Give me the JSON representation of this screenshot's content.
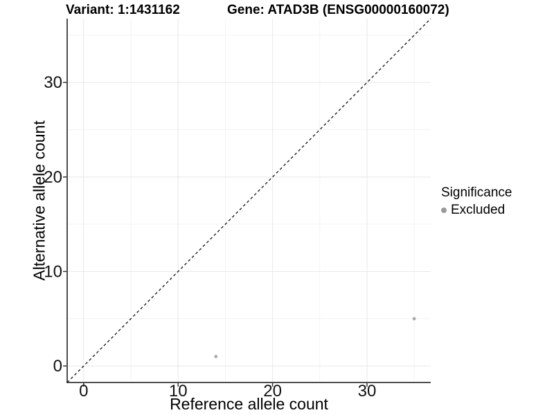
{
  "title": {
    "variant": "Variant: 1:1431162",
    "gene": "Gene: ATAD3B (ENSG00000160072)"
  },
  "chart_data": {
    "type": "scatter",
    "title_left": "Variant: 1:1431162",
    "title_right": "Gene: ATAD3B (ENSG00000160072)",
    "xlabel": "Reference allele count",
    "ylabel": "Alternative allele count",
    "xlim": [
      -1.75,
      36.75
    ],
    "ylim": [
      -1.75,
      36.75
    ],
    "xticks": [
      0,
      10,
      20,
      30
    ],
    "yticks": [
      0,
      10,
      20,
      30
    ],
    "xminor": [
      5,
      15,
      25,
      35
    ],
    "yminor": [
      5,
      15,
      25,
      35
    ],
    "grid": {
      "major_color": "#e8e8e8",
      "minor_color": "#f3f3f3"
    },
    "axis_color": "#4d4d4d",
    "tick_color": "#333333",
    "text_color": "#111111",
    "identity_line": {
      "slope": 1,
      "intercept": 0,
      "style": "dashed",
      "color": "#111111"
    },
    "series": [
      {
        "name": "Excluded",
        "color": "#aaaaaa",
        "points": [
          [
            14,
            1
          ],
          [
            35,
            5
          ]
        ]
      }
    ],
    "legend": {
      "title": "Significance",
      "position": "right",
      "entries": [
        {
          "label": "Excluded",
          "color": "#999999"
        }
      ]
    }
  }
}
